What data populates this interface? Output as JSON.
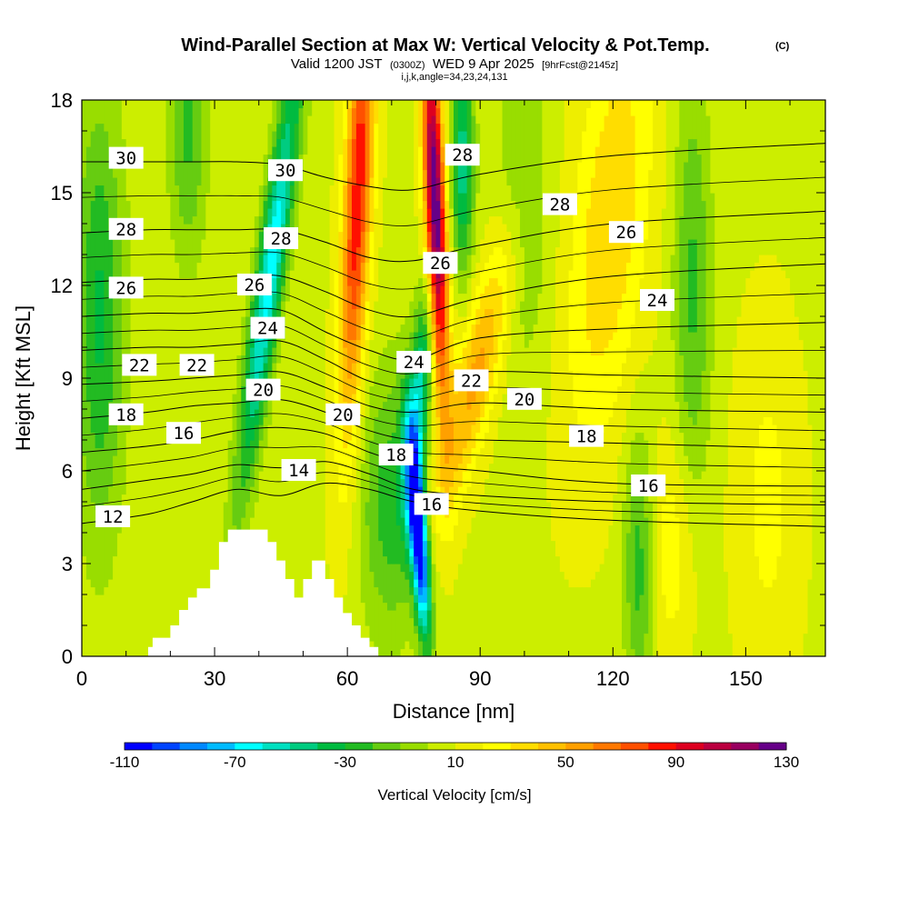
{
  "title": {
    "main": "Wind-Parallel Section at Max W: Vertical Velocity & Pot.Temp.",
    "copyright": "(C)",
    "valid_prefix": "Valid 1200 JST",
    "valid_utc": "(0300Z)",
    "valid_date": "WED 9 Apr 2025",
    "forecast": "[9hrFcst@2145z]",
    "indices": "i,j,k,angle=34,23,24,131"
  },
  "chart_data": {
    "type": "heatmap",
    "xlabel": "Distance [nm]",
    "ylabel": "Height [Kft MSL]",
    "xlim": [
      0,
      168
    ],
    "ylim": [
      0,
      18
    ],
    "x_ticks": [
      0,
      30,
      60,
      90,
      120,
      150
    ],
    "y_ticks": [
      0,
      3,
      6,
      9,
      12,
      15,
      18
    ],
    "colorbar": {
      "title": "Vertical Velocity [cm/s]",
      "min": -110,
      "max": 130,
      "step": 10,
      "tick_values": [
        -110,
        -70,
        -30,
        10,
        50,
        90,
        130
      ],
      "tick_labels": [
        "-110",
        "-70",
        "-30",
        "10",
        "50",
        "90",
        "130"
      ],
      "colors": [
        "#0000ff",
        "#0044ff",
        "#0088ff",
        "#00bbff",
        "#00ffff",
        "#00e0c0",
        "#00cc80",
        "#00bb40",
        "#22bb22",
        "#66cc11",
        "#99dd00",
        "#ccee00",
        "#eeee00",
        "#ffff00",
        "#ffdd00",
        "#ffc000",
        "#ffa000",
        "#ff7800",
        "#ff5000",
        "#ff1000",
        "#dd0020",
        "#bb0040",
        "#990060",
        "#660088"
      ]
    },
    "terrain": [
      [
        15,
        0
      ],
      [
        15,
        0.3
      ],
      [
        16,
        0.3
      ],
      [
        16,
        0.6
      ],
      [
        20,
        0.6
      ],
      [
        20,
        1.0
      ],
      [
        22,
        1.0
      ],
      [
        22,
        1.5
      ],
      [
        24,
        1.5
      ],
      [
        24,
        1.9
      ],
      [
        26,
        1.9
      ],
      [
        26,
        2.2
      ],
      [
        29,
        2.2
      ],
      [
        29,
        2.8
      ],
      [
        31,
        2.8
      ],
      [
        31,
        3.7
      ],
      [
        33,
        3.7
      ],
      [
        33,
        4.1
      ],
      [
        42,
        4.1
      ],
      [
        42,
        3.7
      ],
      [
        44,
        3.7
      ],
      [
        44,
        3.1
      ],
      [
        46,
        3.1
      ],
      [
        46,
        2.5
      ],
      [
        48,
        2.5
      ],
      [
        48,
        1.9
      ],
      [
        50,
        1.9
      ],
      [
        50,
        2.5
      ],
      [
        52,
        2.5
      ],
      [
        52,
        3.1
      ],
      [
        55,
        3.1
      ],
      [
        55,
        2.5
      ],
      [
        57,
        2.5
      ],
      [
        57,
        1.9
      ],
      [
        59,
        1.9
      ],
      [
        59,
        1.4
      ],
      [
        61,
        1.4
      ],
      [
        61,
        1.0
      ],
      [
        63,
        1.0
      ],
      [
        63,
        0.6
      ],
      [
        65,
        0.6
      ],
      [
        65,
        0.3
      ],
      [
        67,
        0.3
      ],
      [
        67,
        0
      ]
    ],
    "theta_contours": [
      {
        "label": "12",
        "level": 12,
        "points": [
          [
            0,
            4.3
          ],
          [
            15,
            4.6
          ],
          [
            25,
            5.0
          ],
          [
            35,
            5.4
          ],
          [
            45,
            5.2
          ],
          [
            55,
            5.6
          ],
          [
            65,
            5.4
          ],
          [
            75,
            5.0
          ],
          [
            90,
            4.7
          ],
          [
            120,
            4.4
          ],
          [
            168,
            4.2
          ]
        ]
      },
      {
        "label": "14",
        "level": 14,
        "points": [
          [
            0,
            5.4
          ],
          [
            15,
            5.7
          ],
          [
            25,
            5.9
          ],
          [
            35,
            6.2
          ],
          [
            45,
            6.1
          ],
          [
            55,
            6.3
          ],
          [
            65,
            5.9
          ],
          [
            75,
            5.4
          ],
          [
            90,
            5.2
          ],
          [
            120,
            5.0
          ],
          [
            168,
            4.9
          ]
        ]
      },
      {
        "label": "16",
        "level": 16,
        "points": [
          [
            0,
            6.6
          ],
          [
            15,
            6.8
          ],
          [
            25,
            7.0
          ],
          [
            35,
            7.3
          ],
          [
            45,
            7.4
          ],
          [
            55,
            7.2
          ],
          [
            65,
            6.6
          ],
          [
            75,
            6.2
          ],
          [
            90,
            6.0
          ],
          [
            120,
            5.6
          ],
          [
            168,
            5.5
          ]
        ]
      },
      {
        "label": "18",
        "level": 18,
        "points": [
          [
            0,
            7.7
          ],
          [
            15,
            7.9
          ],
          [
            25,
            8.1
          ],
          [
            35,
            8.2
          ],
          [
            45,
            8.3
          ],
          [
            55,
            7.9
          ],
          [
            65,
            7.3
          ],
          [
            75,
            7.0
          ],
          [
            90,
            7.0
          ],
          [
            120,
            6.9
          ],
          [
            168,
            6.7
          ]
        ]
      },
      {
        "label": "20",
        "level": 20,
        "points": [
          [
            0,
            8.8
          ],
          [
            15,
            8.9
          ],
          [
            25,
            9.0
          ],
          [
            35,
            9.1
          ],
          [
            45,
            9.2
          ],
          [
            55,
            8.7
          ],
          [
            65,
            8.1
          ],
          [
            75,
            7.9
          ],
          [
            90,
            8.2
          ],
          [
            120,
            8.0
          ],
          [
            168,
            7.9
          ]
        ]
      },
      {
        "label": "22",
        "level": 22,
        "points": [
          [
            0,
            9.9
          ],
          [
            15,
            10.0
          ],
          [
            25,
            10.0
          ],
          [
            35,
            10.1
          ],
          [
            45,
            10.2
          ],
          [
            55,
            9.6
          ],
          [
            65,
            8.9
          ],
          [
            75,
            8.7
          ],
          [
            90,
            9.2
          ],
          [
            120,
            9.1
          ],
          [
            168,
            9.0
          ]
        ]
      },
      {
        "label": "24",
        "level": 24,
        "points": [
          [
            0,
            11.0
          ],
          [
            15,
            11.1
          ],
          [
            25,
            11.1
          ],
          [
            35,
            11.2
          ],
          [
            45,
            11.2
          ],
          [
            55,
            10.5
          ],
          [
            65,
            9.9
          ],
          [
            75,
            9.6
          ],
          [
            90,
            10.3
          ],
          [
            120,
            10.6
          ],
          [
            168,
            10.8
          ]
        ]
      },
      {
        "label": "26",
        "level": 26,
        "points": [
          [
            0,
            12.1
          ],
          [
            15,
            12.2
          ],
          [
            25,
            12.2
          ],
          [
            35,
            12.3
          ],
          [
            45,
            12.3
          ],
          [
            55,
            11.8
          ],
          [
            65,
            11.2
          ],
          [
            75,
            11.0
          ],
          [
            90,
            11.6
          ],
          [
            120,
            12.3
          ],
          [
            168,
            12.7
          ]
        ]
      },
      {
        "label": "28",
        "level": 28,
        "points": [
          [
            0,
            13.7
          ],
          [
            15,
            13.8
          ],
          [
            25,
            13.8
          ],
          [
            35,
            13.8
          ],
          [
            45,
            13.8
          ],
          [
            55,
            13.4
          ],
          [
            65,
            12.9
          ],
          [
            75,
            12.8
          ],
          [
            90,
            13.3
          ],
          [
            120,
            14.0
          ],
          [
            168,
            14.4
          ]
        ]
      },
      {
        "label": "30",
        "level": 30,
        "points": [
          [
            0,
            16.0
          ],
          [
            15,
            16.0
          ],
          [
            25,
            16.0
          ],
          [
            35,
            16.0
          ],
          [
            45,
            15.9
          ],
          [
            55,
            15.5
          ],
          [
            65,
            15.2
          ],
          [
            75,
            15.1
          ],
          [
            90,
            15.6
          ],
          [
            120,
            16.2
          ],
          [
            168,
            16.6
          ]
        ]
      }
    ],
    "contour_labels": [
      {
        "text": "12",
        "x": 7,
        "y": 4.5
      },
      {
        "text": "14",
        "x": 49,
        "y": 6.0
      },
      {
        "text": "16",
        "x": 23,
        "y": 7.2
      },
      {
        "text": "16",
        "x": 79,
        "y": 4.9
      },
      {
        "text": "16",
        "x": 128,
        "y": 5.5
      },
      {
        "text": "18",
        "x": 10,
        "y": 7.8
      },
      {
        "text": "18",
        "x": 71,
        "y": 6.5
      },
      {
        "text": "18",
        "x": 114,
        "y": 7.1
      },
      {
        "text": "20",
        "x": 41,
        "y": 8.6
      },
      {
        "text": "20",
        "x": 59,
        "y": 7.8
      },
      {
        "text": "20",
        "x": 100,
        "y": 8.3
      },
      {
        "text": "22",
        "x": 13,
        "y": 9.4
      },
      {
        "text": "22",
        "x": 26,
        "y": 9.4
      },
      {
        "text": "22",
        "x": 88,
        "y": 8.9
      },
      {
        "text": "24",
        "x": 42,
        "y": 10.6
      },
      {
        "text": "24",
        "x": 75,
        "y": 9.5
      },
      {
        "text": "24",
        "x": 130,
        "y": 11.5
      },
      {
        "text": "26",
        "x": 10,
        "y": 11.9
      },
      {
        "text": "26",
        "x": 39,
        "y": 12.0
      },
      {
        "text": "26",
        "x": 81,
        "y": 12.7
      },
      {
        "text": "26",
        "x": 123,
        "y": 13.7
      },
      {
        "text": "28",
        "x": 10,
        "y": 13.8
      },
      {
        "text": "28",
        "x": 45,
        "y": 13.5
      },
      {
        "text": "28",
        "x": 86,
        "y": 16.2
      },
      {
        "text": "28",
        "x": 108,
        "y": 14.6
      },
      {
        "text": "30",
        "x": 10,
        "y": 16.1
      },
      {
        "text": "30",
        "x": 46,
        "y": 15.7
      }
    ]
  }
}
